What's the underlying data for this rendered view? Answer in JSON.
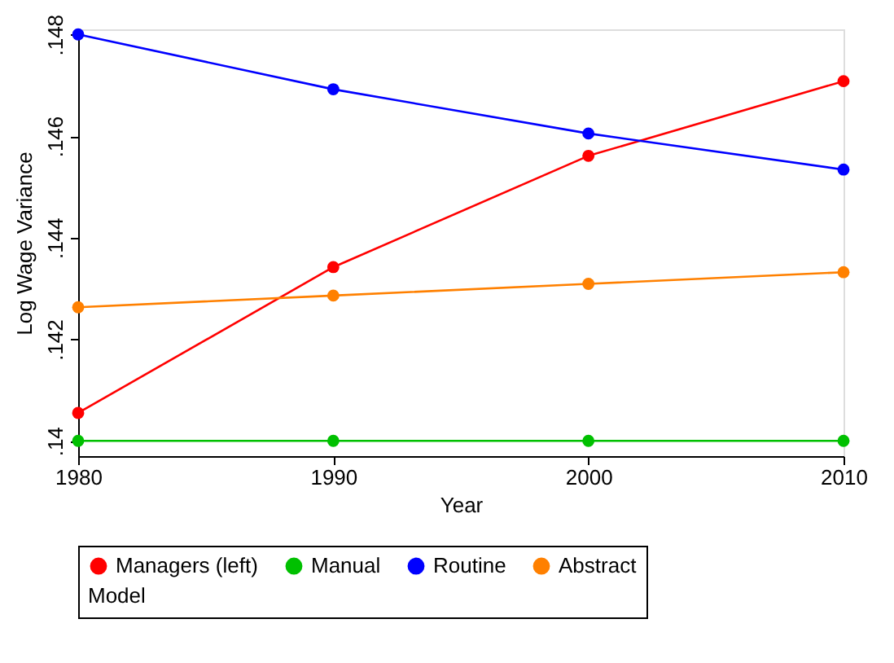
{
  "chart_data": {
    "type": "line",
    "xlabel": "Year",
    "ylabel": "Log Wage Variance",
    "legend_title": "Model",
    "legend": "bottom",
    "marker": "circle",
    "line_style": "solid",
    "grid": false,
    "x": [
      1980,
      1990,
      2000,
      2010
    ],
    "xlim": [
      1980,
      2010
    ],
    "xticks": [
      1980,
      1990,
      2000,
      2010
    ],
    "ylim": [
      0.1397,
      0.1481
    ],
    "yticks": [
      {
        "value": 0.14,
        "label": ".14"
      },
      {
        "value": 0.142,
        "label": ".142"
      },
      {
        "value": 0.144,
        "label": ".144"
      },
      {
        "value": 0.146,
        "label": ".146"
      },
      {
        "value": 0.148,
        "label": ".148"
      }
    ],
    "series": [
      {
        "name": "Managers (left)",
        "color": "#ff0000",
        "values": [
          0.14055,
          0.14342,
          0.14561,
          0.14708
        ]
      },
      {
        "name": "Manual",
        "color": "#00c000",
        "values": [
          0.14,
          0.14,
          0.14,
          0.14
        ]
      },
      {
        "name": "Routine",
        "color": "#0000ff",
        "values": [
          0.148,
          0.14692,
          0.14605,
          0.14534
        ]
      },
      {
        "name": "Abstract",
        "color": "#ff8000",
        "values": [
          0.14263,
          0.14286,
          0.14309,
          0.14332
        ]
      }
    ]
  }
}
